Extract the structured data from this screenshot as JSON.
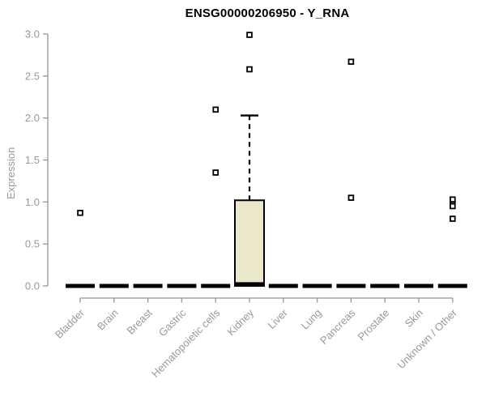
{
  "chart_data": {
    "type": "boxplot",
    "title": "ENSG00000206950 - Y_RNA",
    "ylabel": "Expression",
    "xlabel": "",
    "ylim": [
      0,
      3.0
    ],
    "yticks": [
      0.0,
      0.5,
      1.0,
      1.5,
      2.0,
      2.5,
      3.0
    ],
    "grid": false,
    "legend": "none",
    "categories": [
      "Bladder",
      "Brain",
      "Breast",
      "Gastric",
      "Hematopoietic cells",
      "Kidney",
      "Liver",
      "Lung",
      "Pancreas",
      "Prostate",
      "Skin",
      "Unknown / Other"
    ],
    "series": [
      {
        "category": "Bladder",
        "q1": 0,
        "median": 0,
        "q3": 0,
        "whisker_low": 0,
        "whisker_high": 0,
        "outliers": [
          0.87
        ]
      },
      {
        "category": "Brain",
        "q1": 0,
        "median": 0,
        "q3": 0,
        "whisker_low": 0,
        "whisker_high": 0,
        "outliers": []
      },
      {
        "category": "Breast",
        "q1": 0,
        "median": 0,
        "q3": 0,
        "whisker_low": 0,
        "whisker_high": 0,
        "outliers": []
      },
      {
        "category": "Gastric",
        "q1": 0,
        "median": 0,
        "q3": 0,
        "whisker_low": 0,
        "whisker_high": 0,
        "outliers": []
      },
      {
        "category": "Hematopoietic cells",
        "q1": 0,
        "median": 0,
        "q3": 0,
        "whisker_low": 0,
        "whisker_high": 0,
        "outliers": [
          1.35,
          2.1
        ]
      },
      {
        "category": "Kidney",
        "q1": 0,
        "median": 0.02,
        "q3": 1.02,
        "whisker_low": 0,
        "whisker_high": 2.03,
        "outliers": [
          2.58,
          2.99
        ]
      },
      {
        "category": "Liver",
        "q1": 0,
        "median": 0,
        "q3": 0,
        "whisker_low": 0,
        "whisker_high": 0,
        "outliers": []
      },
      {
        "category": "Lung",
        "q1": 0,
        "median": 0,
        "q3": 0,
        "whisker_low": 0,
        "whisker_high": 0,
        "outliers": []
      },
      {
        "category": "Pancreas",
        "q1": 0,
        "median": 0,
        "q3": 0,
        "whisker_low": 0,
        "whisker_high": 0,
        "outliers": [
          1.05,
          2.67
        ]
      },
      {
        "category": "Prostate",
        "q1": 0,
        "median": 0,
        "q3": 0,
        "whisker_low": 0,
        "whisker_high": 0,
        "outliers": []
      },
      {
        "category": "Skin",
        "q1": 0,
        "median": 0,
        "q3": 0,
        "whisker_low": 0,
        "whisker_high": 0,
        "outliers": []
      },
      {
        "category": "Unknown / Other",
        "q1": 0,
        "median": 0,
        "q3": 0,
        "whisker_low": 0,
        "whisker_high": 0,
        "outliers": [
          0.8,
          0.95,
          1.01,
          1.03
        ]
      }
    ],
    "colors": {
      "box_fill": "#ece8cc",
      "box_stroke": "#000000",
      "median": "#000000",
      "outlier_fill": "#ffffff",
      "outlier_stroke": "#000000",
      "axis": "#949494",
      "tick_label": "#999999",
      "title": "#000000"
    }
  }
}
